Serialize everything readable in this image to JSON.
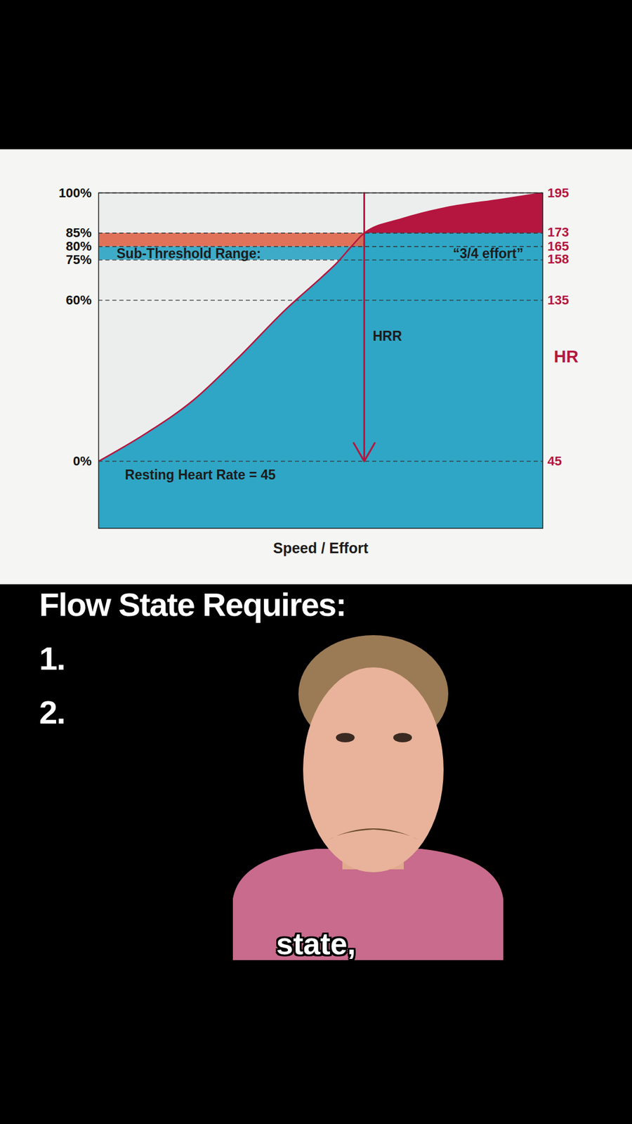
{
  "chart_data": {
    "type": "area",
    "x_label": "Speed / Effort",
    "y2_label": "HR",
    "x": [
      0,
      10.2,
      21.5,
      31.1,
      42.4,
      50.5,
      53.7,
      56.9,
      59.8,
      68.2,
      77.9,
      90.8,
      100
    ],
    "values": [
      0,
      9.9,
      23,
      38,
      57,
      69,
      74,
      80,
      85,
      90.3,
      94.4,
      97.6,
      100
    ],
    "color": "#2fa6c5",
    "xlim": [
      0,
      100
    ],
    "xticks": [],
    "ylim": [
      -25,
      100
    ],
    "yticks": [
      {
        "value": 0,
        "label": "0%"
      },
      {
        "value": 60,
        "label": "60%"
      },
      {
        "value": 75,
        "label": "75%"
      },
      {
        "value": 80,
        "label": "80%"
      },
      {
        "value": 85,
        "label": "85%"
      },
      {
        "value": 100,
        "label": "100%"
      }
    ],
    "y2lim": [
      7.5,
      195
    ],
    "y2ticks": [
      45,
      135,
      158,
      165,
      173,
      195
    ],
    "grid": true,
    "above_threshold": {
      "y": 85,
      "color": "#b5163f"
    },
    "zones": [
      {
        "x": [
          0,
          100
        ],
        "y": [
          75,
          80
        ],
        "color": "#2fa6c5"
      },
      {
        "x": [
          0,
          59.8
        ],
        "y": [
          80,
          85
        ],
        "color": "#e0674d"
      }
    ],
    "arrow": {
      "x": 59.8,
      "y": [
        100,
        0
      ]
    },
    "annotations": [
      {
        "text": "Sub-Threshold Range:",
        "x": 20.3,
        "y": 77.2
      },
      {
        "text": "“3/4 effort”",
        "x": 87.7,
        "y": 77.2
      },
      {
        "text": "HRR",
        "x": 65,
        "y": 46.6
      },
      {
        "text": "Resting Heart Rate = 45",
        "x": 22.9,
        "y": -5.1
      }
    ]
  },
  "page": {
    "heading": "Flow State Requires:",
    "list": [
      "1.",
      "2."
    ],
    "caption": "state,"
  }
}
